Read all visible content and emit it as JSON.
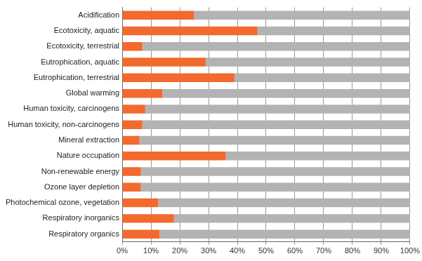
{
  "chart_data": {
    "type": "bar",
    "orientation": "horizontal",
    "stacked": true,
    "grid": true,
    "categories": [
      "Acidification",
      "Ecotoxicity, aquatic",
      "Ecotoxicity, terrestrial",
      "Eutrophication, aquatic",
      "Eutrophication, terrestrial",
      "Global warming",
      "Human toxicity, carcinogens",
      "Human toxicity, non-carcinogens",
      "Mineral extraction",
      "Nature occupation",
      "Non-renewable energy",
      "Ozone layer depletion",
      "Photochemical ozone, vegetation",
      "Respiratory inorganics",
      "Respiratory organics"
    ],
    "series": [
      {
        "color": "#f26a2e",
        "values": [
          25,
          47,
          7,
          29,
          39,
          14,
          8,
          7,
          6,
          36,
          6.5,
          6.5,
          12.5,
          18,
          13
        ]
      },
      {
        "color": "#b3b3b3",
        "values": [
          75,
          53,
          93,
          71,
          61,
          86,
          92,
          93,
          94,
          64,
          93.5,
          93.5,
          87.5,
          82,
          87
        ]
      }
    ],
    "xlim": [
      0,
      100
    ],
    "xticks": [
      {
        "value": 0,
        "label": "0%"
      },
      {
        "value": 10,
        "label": "10%"
      },
      {
        "value": 20,
        "label": "20%"
      },
      {
        "value": 30,
        "label": "30%"
      },
      {
        "value": 40,
        "label": "40%"
      },
      {
        "value": 50,
        "label": "50%"
      },
      {
        "value": 60,
        "label": "60%"
      },
      {
        "value": 70,
        "label": "70%"
      },
      {
        "value": 80,
        "label": "80%"
      },
      {
        "value": 90,
        "label": "90%"
      },
      {
        "value": 100,
        "label": "100%"
      }
    ]
  }
}
